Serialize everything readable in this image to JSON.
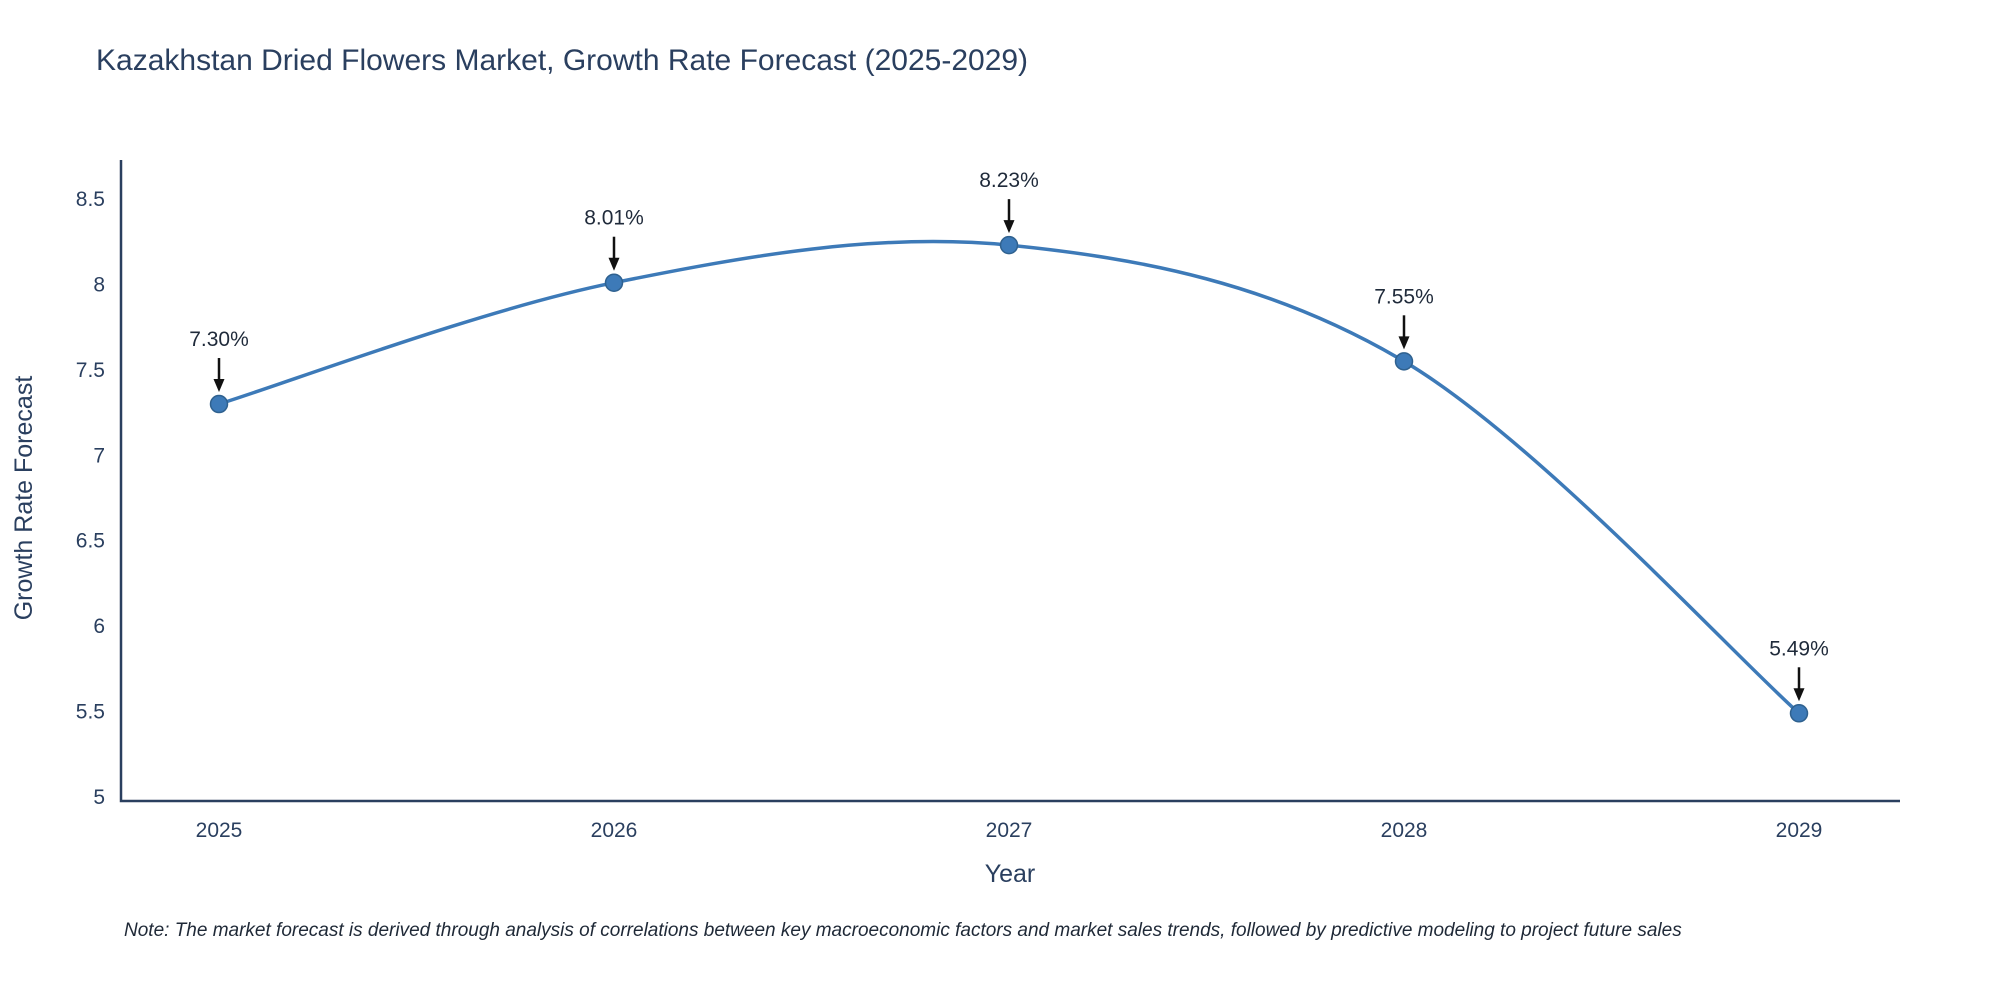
{
  "note": "Note: The market forecast is derived through analysis of correlations between key macroeconomic factors and market sales trends, followed by predictive modeling to project future sales",
  "chart_data": {
    "type": "line",
    "title": "Kazakhstan Dried Flowers Market, Growth Rate Forecast (2025-2029)",
    "categories": [
      "2025",
      "2026",
      "2027",
      "2028",
      "2029"
    ],
    "values": [
      7.3,
      8.01,
      8.23,
      7.55,
      5.49
    ],
    "point_labels": [
      "7.30%",
      "8.01%",
      "8.23%",
      "7.55%",
      "5.49%"
    ],
    "xlabel": "Year",
    "ylabel": "Growth Rate Forecast",
    "ylim": [
      5,
      8.5
    ],
    "yticks": [
      5,
      5.5,
      6,
      6.5,
      7,
      7.5,
      8,
      8.5
    ],
    "grid": false,
    "legend": false,
    "line_shape": "spline",
    "colors": {
      "line": "#3d7ab8",
      "marker": "#3d7ab8",
      "marker_edge": "#2f618f",
      "axis": "#2a3f5f",
      "text": "#2a3f5f",
      "annotation_arrow": "#111111",
      "background": "#ffffff"
    }
  }
}
